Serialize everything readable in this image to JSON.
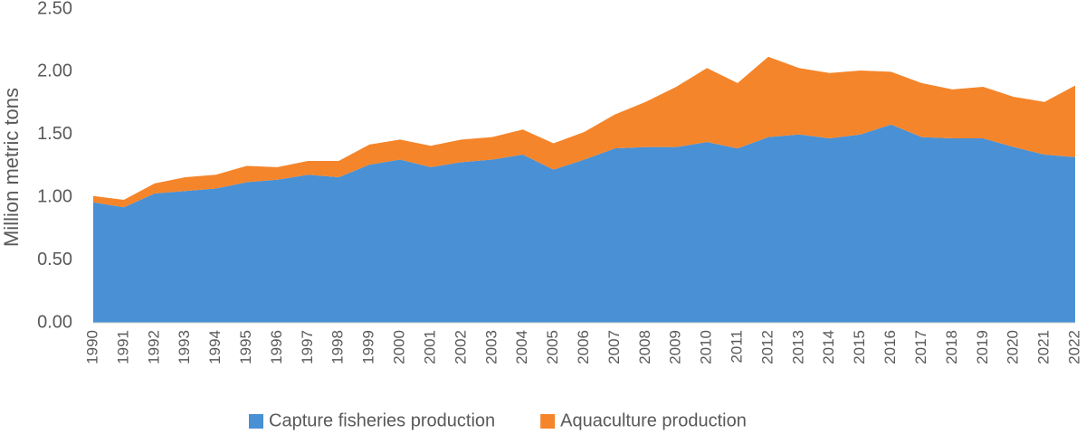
{
  "chart_data": {
    "type": "stacked-area",
    "y_label": "Million metric tons",
    "categories": [
      "1990",
      "1991",
      "1992",
      "1993",
      "1994",
      "1995",
      "1996",
      "1997",
      "1998",
      "1999",
      "2000",
      "2001",
      "2002",
      "2003",
      "2004",
      "2005",
      "2006",
      "2007",
      "2008",
      "2009",
      "2010",
      "2011",
      "2012",
      "2013",
      "2014",
      "2015",
      "2016",
      "2017",
      "2018",
      "2019",
      "2020",
      "2021",
      "2022"
    ],
    "series": [
      {
        "name": "Capture fisheries production",
        "color": "#4a90d4",
        "values": [
          0.96,
          0.92,
          1.03,
          1.05,
          1.07,
          1.12,
          1.14,
          1.18,
          1.16,
          1.26,
          1.3,
          1.24,
          1.28,
          1.3,
          1.34,
          1.22,
          1.3,
          1.39,
          1.4,
          1.4,
          1.44,
          1.39,
          1.48,
          1.5,
          1.47,
          1.5,
          1.58,
          1.48,
          1.47,
          1.47,
          1.4,
          1.34,
          1.32
        ]
      },
      {
        "name": "Aquaculture production",
        "color": "#f5852a",
        "values": [
          0.05,
          0.06,
          0.08,
          0.11,
          0.11,
          0.13,
          0.1,
          0.11,
          0.13,
          0.16,
          0.16,
          0.17,
          0.18,
          0.18,
          0.2,
          0.21,
          0.22,
          0.27,
          0.36,
          0.48,
          0.59,
          0.52,
          0.64,
          0.53,
          0.52,
          0.51,
          0.42,
          0.43,
          0.39,
          0.41,
          0.4,
          0.42,
          0.57
        ]
      }
    ],
    "ylim": [
      0,
      2.5
    ],
    "yticks": [
      {
        "value": 0,
        "label": "0.00"
      },
      {
        "value": 0.5,
        "label": "0.50"
      },
      {
        "value": 1,
        "label": "1.00"
      },
      {
        "value": 1.5,
        "label": "1.50"
      },
      {
        "value": 2,
        "label": "2.00"
      },
      {
        "value": 2.5,
        "label": "2.50"
      }
    ],
    "grid": false,
    "legend": "bottom"
  }
}
